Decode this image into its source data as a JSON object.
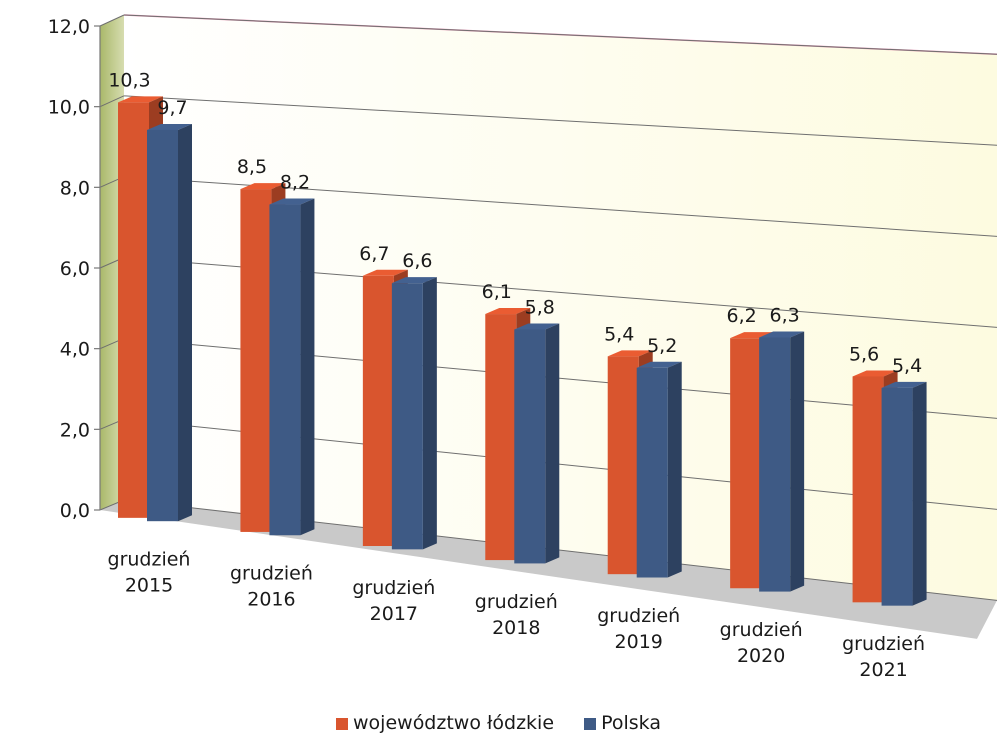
{
  "chart_data": {
    "type": "bar",
    "categories": [
      "grudzień\n2015",
      "grudzień\n2016",
      "grudzień\n2017",
      "grudzień\n2018",
      "grudzień\n2019",
      "grudzień\n2020",
      "grudzień\n2021"
    ],
    "series": [
      {
        "name": "województwo łódzkie",
        "color": "#d9552e",
        "values": [
          10.3,
          8.5,
          6.7,
          6.1,
          5.4,
          6.2,
          5.6
        ]
      },
      {
        "name": "Polska",
        "color": "#3e5a85",
        "values": [
          9.7,
          8.2,
          6.6,
          5.8,
          5.2,
          6.3,
          5.4
        ]
      }
    ],
    "data_labels": [
      [
        "10,3",
        "8,5",
        "6,7",
        "6,1",
        "5,4",
        "6,2",
        "5,6"
      ],
      [
        "9,7",
        "8,2",
        "6,6",
        "5,8",
        "5,2",
        "6,3",
        "5,4"
      ]
    ],
    "yticks": [
      "0,0",
      "2,0",
      "4,0",
      "6,0",
      "8,0",
      "10,0",
      "12,0"
    ],
    "ylim": [
      0,
      12
    ],
    "grid": true,
    "legend_position": "bottom"
  }
}
